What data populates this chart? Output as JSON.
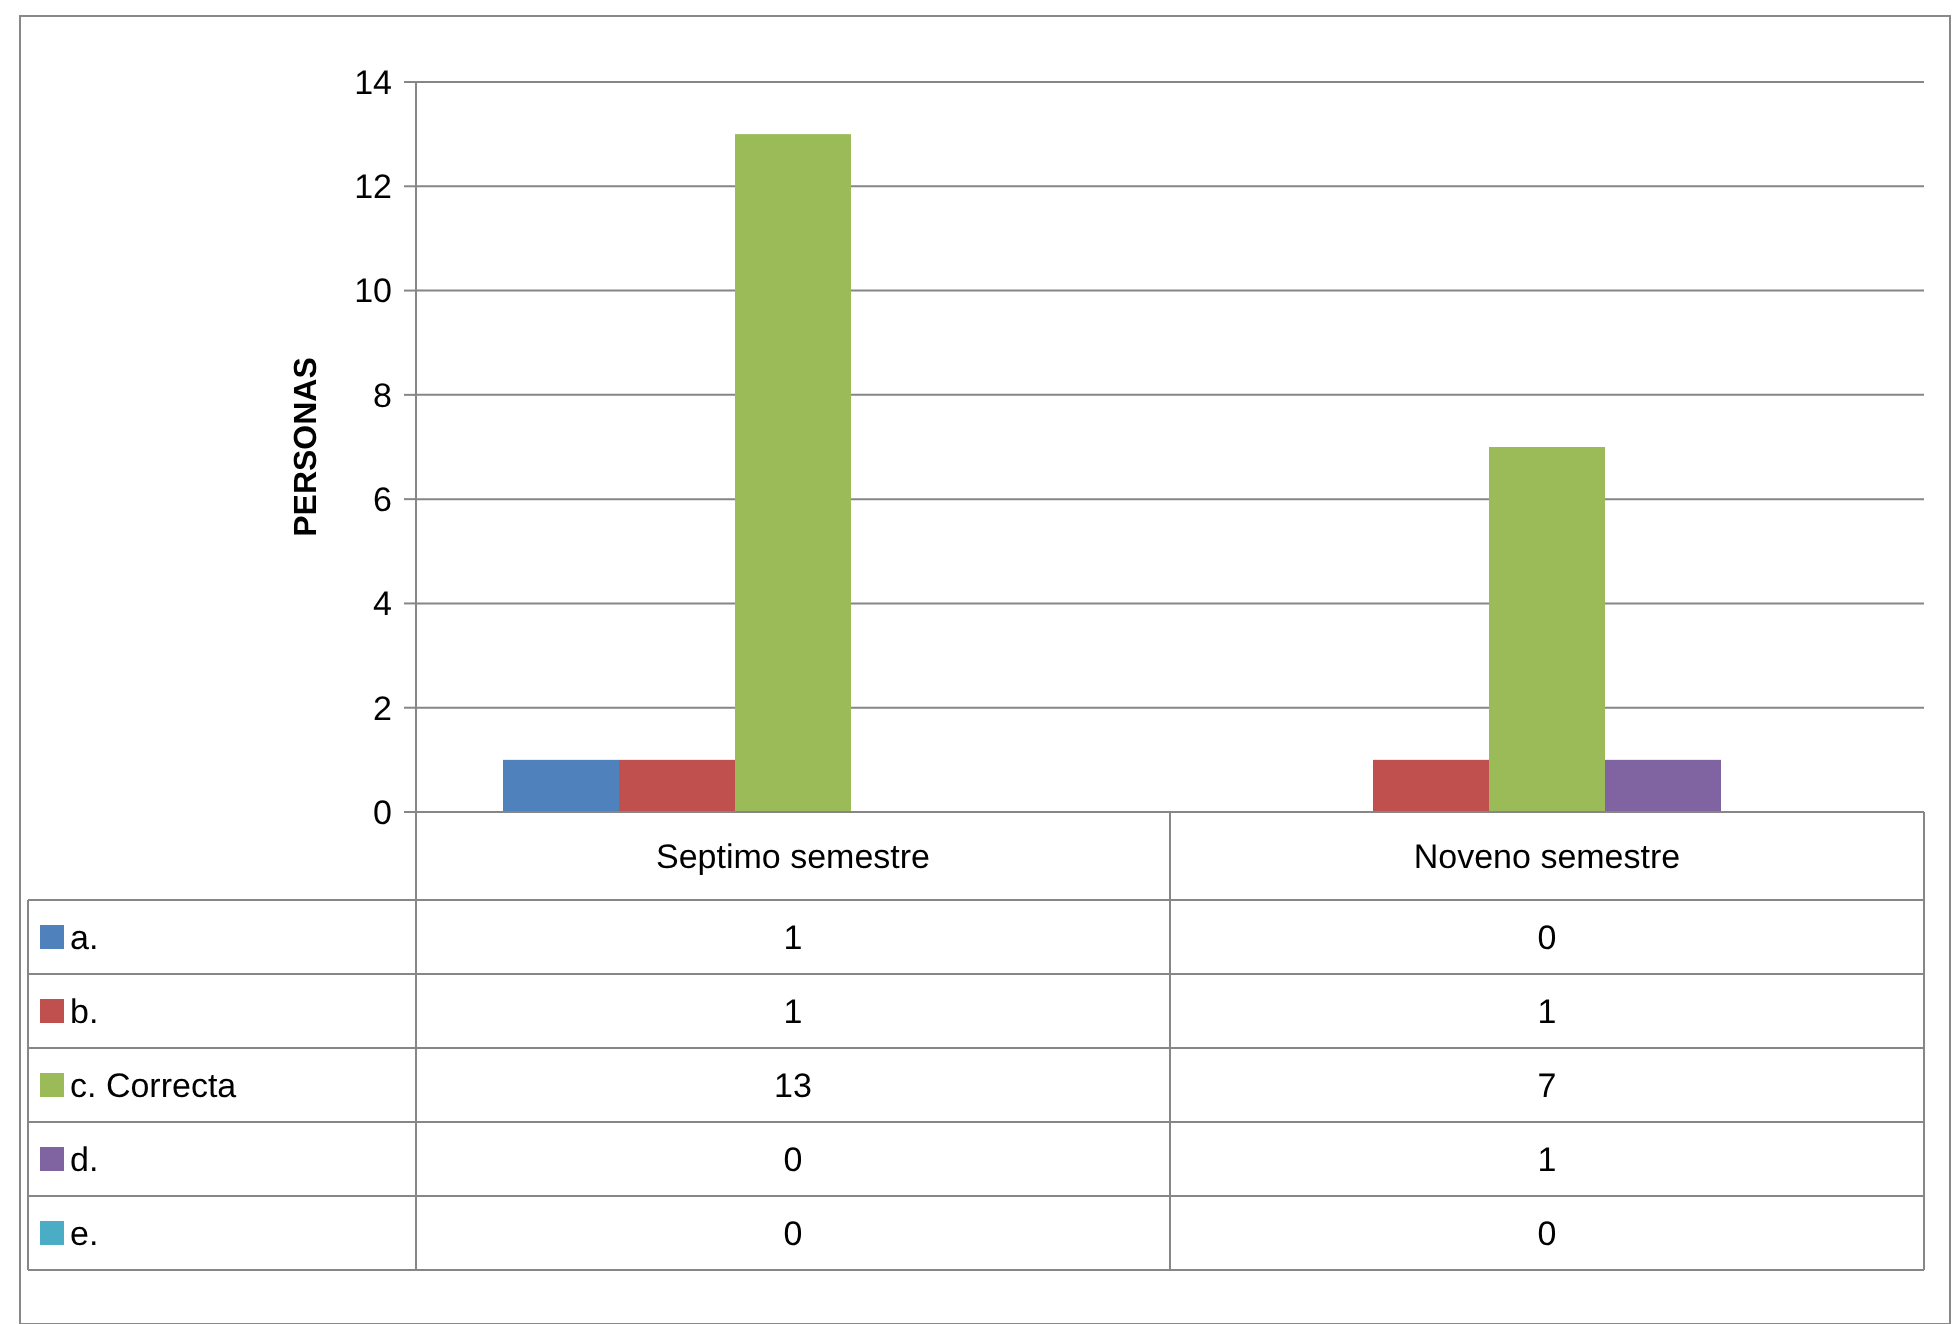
{
  "chart_data": {
    "type": "bar",
    "ylabel": "PERSONAS",
    "categories": [
      "Septimo semestre",
      "Noveno semestre"
    ],
    "series": [
      {
        "name": "a.",
        "color": "#4f81bd",
        "values": [
          1,
          0
        ]
      },
      {
        "name": "b.",
        "color": "#c0504d",
        "values": [
          1,
          1
        ]
      },
      {
        "name": "c. Correcta",
        "color": "#9bbb59",
        "values": [
          13,
          7
        ]
      },
      {
        "name": "d.",
        "color": "#8064a2",
        "values": [
          0,
          1
        ]
      },
      {
        "name": "e.",
        "color": "#4bacc6",
        "values": [
          0,
          0
        ]
      }
    ],
    "ylim": [
      0,
      14
    ],
    "yticks": [
      0,
      2,
      4,
      6,
      8,
      10,
      12,
      14
    ],
    "grid": "y",
    "legend": "bottom",
    "data_labels": true
  }
}
